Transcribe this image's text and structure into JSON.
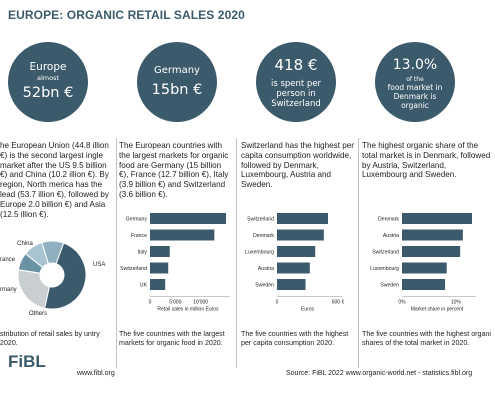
{
  "header": {
    "title": "EUROPE: ORGANIC RETAIL SALES 2020"
  },
  "colors": {
    "primary": "#3b5a6b",
    "bar": "#3b5a6b",
    "pie_light": "#a8c4d1",
    "pie_mid": "#6a92a5",
    "pie_grey": "#c9ced1"
  },
  "columns": [
    {
      "circle": {
        "line1": "Europe",
        "line2": "almost",
        "line3": "52bn €"
      },
      "text": "he European Union (44.8 illion €) is the second largest ingle market after the US 9.5 billion €) and China (10.2 illion €). By region, North merica has the lead (53.7 illion €), followed by Europe 2.0 billion €) and Asia (12.5 illion €).",
      "caption": "stribution of retail sales by untry 2020."
    },
    {
      "circle": {
        "line1": "Germany",
        "line2": "15bn €"
      },
      "text": "The European countries with the largest markets for organic food are Germany (15 billion €), France (12.7 billion €), Italy (3.9 billion €) and Switzerland (3.6 billion €).",
      "caption": "The five countries with the largest markets for organic food in 2020."
    },
    {
      "circle": {
        "line1": "418 €",
        "line2": "is spent per",
        "line3": "person in",
        "line4": "Switzerland"
      },
      "text": "Switzerland has the highest per capita consumption worldwide, followed by Denmark, Luxembourg, Austria and Sweden.",
      "caption": "The five countries with the highest per capita consumption 2020."
    },
    {
      "circle": {
        "line1": "13.0%",
        "line2": "of the",
        "line3": "food market in",
        "line4": "Denmark is",
        "line5": "organic"
      },
      "text": "The highest organic share of the total market is in Denmark, followed by Austria, Switzerland, Luxembourg and Sweden.",
      "caption": "The five countries with the highest organi shares of the total market in 2020."
    }
  ],
  "chart_data": [
    {
      "type": "pie",
      "labels": [
        "USA",
        "Others",
        "rmany",
        "rance",
        "China"
      ],
      "values": [
        46,
        23,
        8,
        9,
        10
      ],
      "title": ""
    },
    {
      "type": "bar",
      "orientation": "horizontal",
      "categories": [
        "Germany",
        "France",
        "Italy",
        "Switzerland",
        "UK"
      ],
      "values": [
        15000,
        12700,
        3900,
        3600,
        3000
      ],
      "xlim": [
        0,
        15000
      ],
      "xticks": [
        "0",
        "5'000",
        "10'000"
      ],
      "xlabel": "Retail sales in million Euros"
    },
    {
      "type": "bar",
      "orientation": "horizontal",
      "categories": [
        "Switzerland",
        "Denmark",
        "Luxembourg",
        "Austria",
        "Sweden"
      ],
      "values": [
        418,
        384,
        313,
        269,
        234
      ],
      "xlim": [
        0,
        500
      ],
      "xticks": [
        "0",
        "500 €"
      ],
      "xlabel": "Euros"
    },
    {
      "type": "bar",
      "orientation": "horizontal",
      "categories": [
        "Denmark",
        "Austria",
        "Switzerland",
        "Luxembourg",
        "Sweden"
      ],
      "values": [
        13.0,
        11.3,
        10.8,
        8.3,
        8.0
      ],
      "xlim": [
        0,
        13
      ],
      "xticks": [
        "0%",
        "10%"
      ],
      "xlabel": "Market share in percent"
    }
  ],
  "footer": {
    "logo": "FiBL",
    "url": "www.fibl.org",
    "source": "Source: FiBL 2022 www.organic-world.net - statistics.fibl.org"
  }
}
